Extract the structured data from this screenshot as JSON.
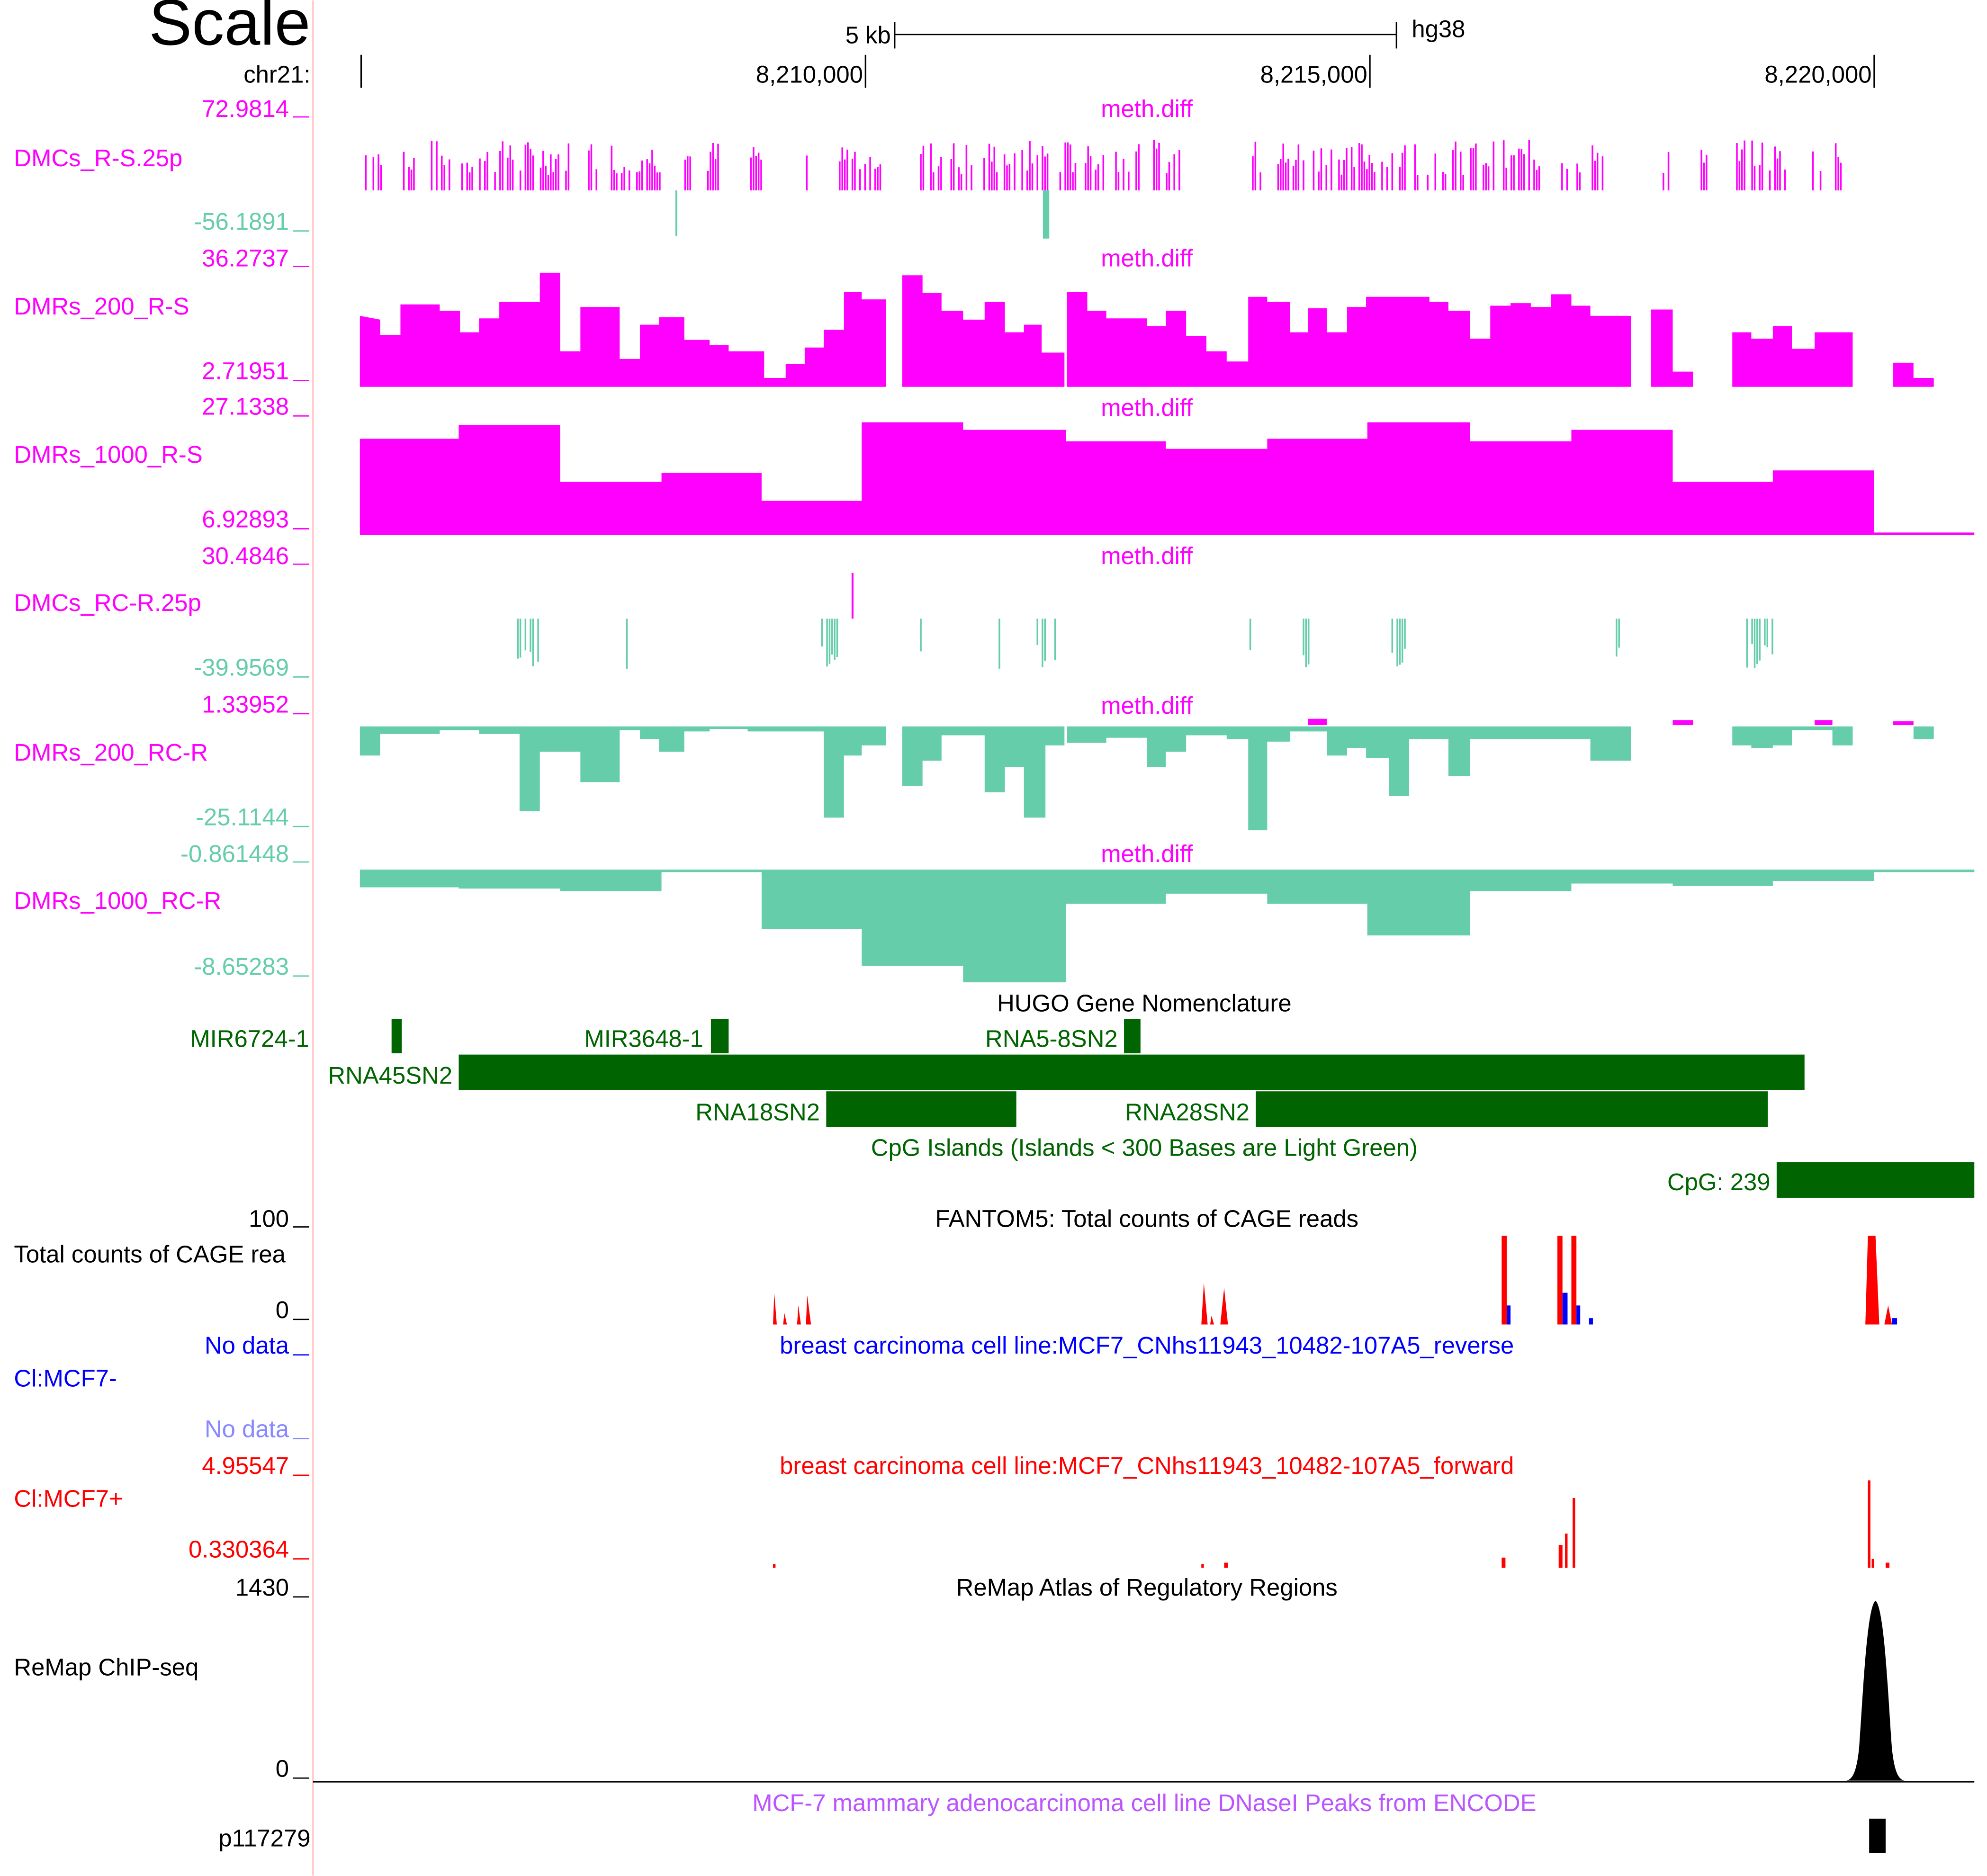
{
  "browser": {
    "scale_label": "Scale",
    "scale_bar_label": "5 kb",
    "assembly": "hg38",
    "chrom_label": "chr21:",
    "positions": [
      "8,210,000",
      "8,215,000",
      "8,220,000"
    ]
  },
  "tracks": [
    {
      "id": "dmcs-r-s",
      "name": "DMCs_R-S.25p",
      "title": "meth.diff",
      "max": "72.9814",
      "min": "-56.1891"
    },
    {
      "id": "dmrs-200-r-s",
      "name": "DMRs_200_R-S",
      "title": "meth.diff",
      "max": "36.2737",
      "min": "2.71951"
    },
    {
      "id": "dmrs-1000-r-s",
      "name": "DMRs_1000_R-S",
      "title": "meth.diff",
      "max": "27.1338",
      "min": "6.92893"
    },
    {
      "id": "dmcs-rc-r",
      "name": "DMCs_RC-R.25p",
      "title": "meth.diff",
      "max": "30.4846",
      "min": "-39.9569"
    },
    {
      "id": "dmrs-200-rc-r",
      "name": "DMRs_200_RC-R",
      "title": "meth.diff",
      "max": "1.33952",
      "min": "-25.1144"
    },
    {
      "id": "dmrs-1000-rc-r",
      "name": "DMRs_1000_RC-R",
      "title": "meth.diff",
      "max": "-0.861448",
      "min": "-8.65283"
    }
  ],
  "genes": {
    "title": "HUGO Gene Nomenclature",
    "items": [
      "MIR6724-1",
      "MIR3648-1",
      "RNA5-8SN2",
      "RNA45SN2",
      "RNA18SN2",
      "RNA28SN2"
    ]
  },
  "cpg": {
    "title": "CpG Islands (Islands < 300 Bases are Light Green)",
    "item": "CpG: 239"
  },
  "cage": {
    "title": "FANTOM5: Total counts of CAGE reads",
    "name": "Total counts of CAGE rea",
    "max": "100",
    "min": "0"
  },
  "mcf7_minus": {
    "title": "breast carcinoma cell line:MCF7_CNhs11943_10482-107A5_reverse",
    "name": "Cl:MCF7-",
    "max": "No data",
    "min": "No data"
  },
  "mcf7_plus": {
    "title": "breast carcinoma cell line:MCF7_CNhs11943_10482-107A5_forward",
    "name": "Cl:MCF7+",
    "max": "4.95547",
    "min": "0.330364"
  },
  "remap": {
    "title": "ReMap Atlas of Regulatory Regions",
    "name": "ReMap ChIP-seq",
    "max": "1430",
    "min": "0"
  },
  "dnase": {
    "title": "MCF-7 mammary adenocarcinoma cell line DNaseI Peaks from ENCODE",
    "name": "p117279"
  },
  "colors": {
    "positive": "#ff00ff",
    "negative": "#66cdaa",
    "gene": "#006400",
    "forward": "#ff0000",
    "reverse": "#0000ff",
    "dnase_title": "#bb55ff",
    "remap": "#000000"
  }
}
